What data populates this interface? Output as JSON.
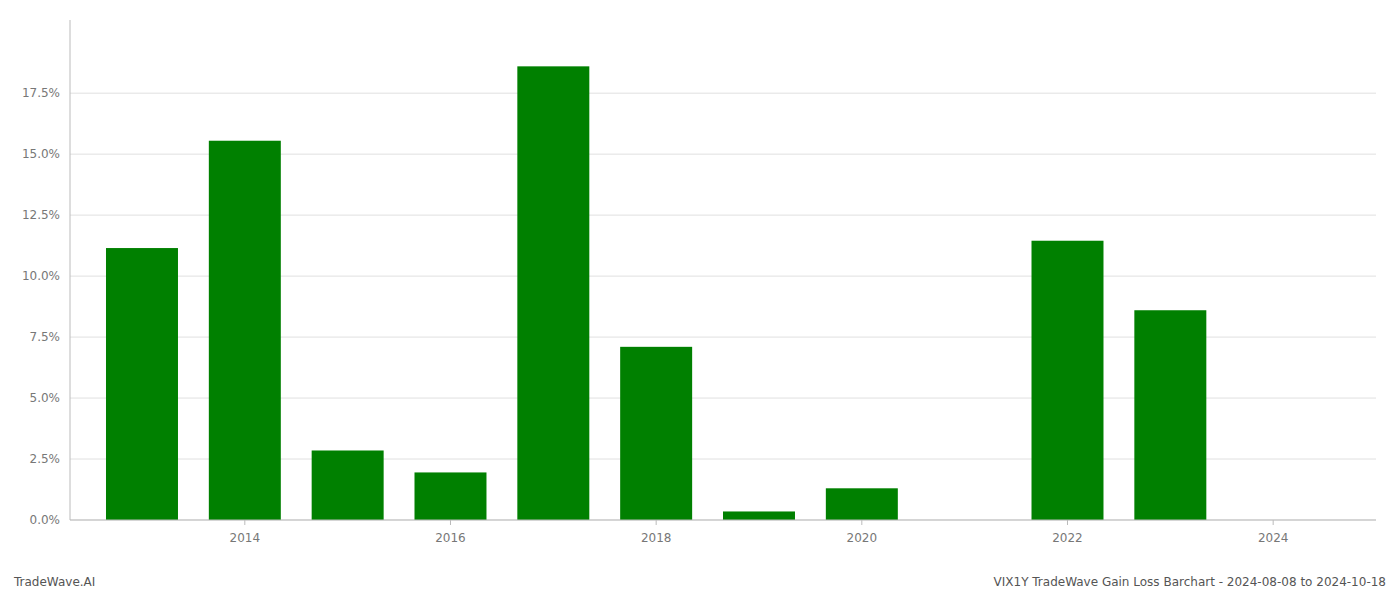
{
  "chart_data": {
    "type": "bar",
    "x": [
      2013,
      2014,
      2015,
      2016,
      2017,
      2018,
      2019,
      2020,
      2021,
      2022,
      2023
    ],
    "values": [
      0.1115,
      0.1555,
      0.0285,
      0.0195,
      0.186,
      0.071,
      0.0035,
      0.013,
      0.0,
      0.1145,
      0.086
    ],
    "color": "#008000",
    "xlim": [
      2012.3,
      2025.0
    ],
    "xticks": [
      2014,
      2016,
      2018,
      2020,
      2022,
      2024
    ],
    "ylim": [
      0,
      0.205
    ],
    "yticks": [
      {
        "value": 0.0,
        "label": "0.0%"
      },
      {
        "value": 0.025,
        "label": "2.5%"
      },
      {
        "value": 0.05,
        "label": "5.0%"
      },
      {
        "value": 0.075,
        "label": "7.5%"
      },
      {
        "value": 0.1,
        "label": "10.0%"
      },
      {
        "value": 0.125,
        "label": "12.5%"
      },
      {
        "value": 0.15,
        "label": "15.0%"
      },
      {
        "value": 0.175,
        "label": "17.5%"
      }
    ],
    "grid": true,
    "annotations": [
      "TradeWave.AI",
      "VIX1Y TradeWave Gain Loss Barchart - 2024-08-08 to 2024-10-18"
    ]
  }
}
